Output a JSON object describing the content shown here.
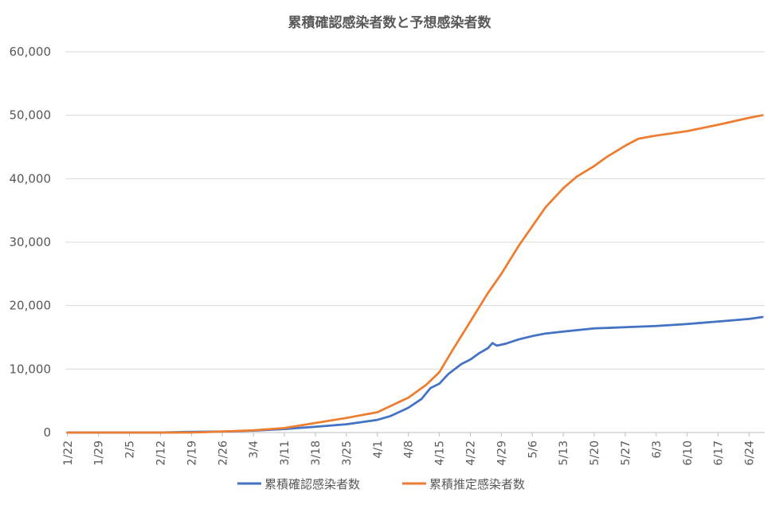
{
  "chart_data": {
    "type": "line",
    "title": "累積確認感染者数と予想感染者数",
    "xlabel": "",
    "ylabel": "",
    "ylim": [
      0,
      60000
    ],
    "yticks": [
      "0",
      "10,000",
      "20,000",
      "30,000",
      "40,000",
      "50,000",
      "60,000"
    ],
    "ytick_values": [
      0,
      10000,
      20000,
      30000,
      40000,
      50000,
      60000
    ],
    "x_start": "1/22",
    "x_end": "6/27",
    "xtick_labels": [
      "1/22",
      "1/29",
      "2/5",
      "2/12",
      "2/19",
      "2/26",
      "3/4",
      "3/11",
      "3/18",
      "3/25",
      "4/1",
      "4/8",
      "4/15",
      "4/22",
      "4/29",
      "5/6",
      "5/13",
      "5/20",
      "5/27",
      "6/3",
      "6/10",
      "6/17",
      "6/24"
    ],
    "grid": true,
    "legend_position": "bottom",
    "series": [
      {
        "name": "累積確認感染者数",
        "color": "#4472C4",
        "points": [
          [
            "1/22",
            0
          ],
          [
            "2/12",
            0
          ],
          [
            "2/18",
            100
          ],
          [
            "2/26",
            150
          ],
          [
            "3/4",
            300
          ],
          [
            "3/11",
            550
          ],
          [
            "3/18",
            900
          ],
          [
            "3/25",
            1300
          ],
          [
            "3/29",
            1700
          ],
          [
            "4/1",
            2000
          ],
          [
            "4/4",
            2600
          ],
          [
            "4/8",
            3900
          ],
          [
            "4/11",
            5300
          ],
          [
            "4/13",
            7000
          ],
          [
            "4/15",
            7700
          ],
          [
            "4/17",
            9200
          ],
          [
            "4/20",
            10800
          ],
          [
            "4/22",
            11500
          ],
          [
            "4/24",
            12500
          ],
          [
            "4/26",
            13300
          ],
          [
            "4/27",
            14100
          ],
          [
            "4/28",
            13700
          ],
          [
            "4/30",
            14000
          ],
          [
            "5/3",
            14700
          ],
          [
            "5/6",
            15200
          ],
          [
            "5/9",
            15600
          ],
          [
            "5/13",
            15900
          ],
          [
            "5/20",
            16400
          ],
          [
            "5/27",
            16600
          ],
          [
            "6/3",
            16800
          ],
          [
            "6/10",
            17100
          ],
          [
            "6/17",
            17500
          ],
          [
            "6/24",
            17900
          ],
          [
            "6/27",
            18200
          ]
        ]
      },
      {
        "name": "累積推定感染者数",
        "color": "#ED7D31",
        "points": [
          [
            "1/22",
            0
          ],
          [
            "2/19",
            0
          ],
          [
            "2/26",
            150
          ],
          [
            "3/4",
            350
          ],
          [
            "3/11",
            700
          ],
          [
            "3/18",
            1500
          ],
          [
            "3/25",
            2300
          ],
          [
            "4/1",
            3200
          ],
          [
            "4/8",
            5500
          ],
          [
            "4/12",
            7500
          ],
          [
            "4/15",
            9500
          ],
          [
            "4/18",
            13000
          ],
          [
            "4/22",
            17500
          ],
          [
            "4/26",
            22000
          ],
          [
            "4/29",
            25000
          ],
          [
            "5/3",
            29500
          ],
          [
            "5/6",
            32500
          ],
          [
            "5/9",
            35500
          ],
          [
            "5/13",
            38500
          ],
          [
            "5/16",
            40300
          ],
          [
            "5/20",
            42000
          ],
          [
            "5/23",
            43500
          ],
          [
            "5/27",
            45200
          ],
          [
            "5/30",
            46300
          ],
          [
            "6/3",
            46800
          ],
          [
            "6/10",
            47500
          ],
          [
            "6/17",
            48500
          ],
          [
            "6/24",
            49600
          ],
          [
            "6/27",
            50000
          ]
        ]
      }
    ]
  }
}
